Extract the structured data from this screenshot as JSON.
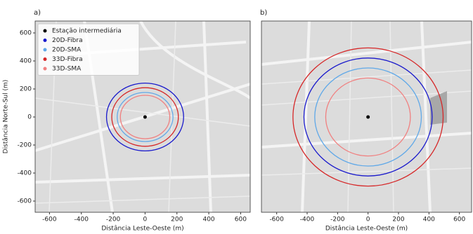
{
  "chart_data": [
    {
      "type": "circles",
      "title": "a)",
      "xlabel": "Distância Leste-Oeste (m)",
      "ylabel": "Distância Norte-Sul (m)",
      "xlim": [
        -690,
        660
      ],
      "ylim": [
        -680,
        685
      ],
      "xticks": [
        -600,
        -400,
        -200,
        0,
        200,
        400,
        600
      ],
      "yticks": [
        -600,
        -400,
        -200,
        0,
        200,
        400,
        600
      ],
      "center": {
        "name": "Estação intermediária",
        "color": "#000000",
        "x": 0,
        "y": 0
      },
      "series": [
        {
          "name": "20D-Fibra",
          "color": "#1a1acc",
          "radius": 242
        },
        {
          "name": "20D-SMA",
          "color": "#5fa8e8",
          "radius": 175
        },
        {
          "name": "33D-Fibra",
          "color": "#d62728",
          "radius": 209
        },
        {
          "name": "33D-SMA",
          "color": "#f08080",
          "radius": 155
        }
      ],
      "legend": "upper left"
    },
    {
      "type": "circles",
      "title": "b)",
      "xlabel": "Distância Leste-Oeste (m)",
      "xlim": [
        -700,
        680
      ],
      "ylim": [
        -680,
        685
      ],
      "xticks": [
        -600,
        -400,
        -200,
        0,
        200,
        400,
        600
      ],
      "center": {
        "color": "#000000",
        "x": 0,
        "y": 0
      },
      "series": [
        {
          "color": "#1a1acc",
          "radius": 421
        },
        {
          "color": "#5fa8e8",
          "radius": 350
        },
        {
          "color": "#d62728",
          "radius": 493
        },
        {
          "color": "#f08080",
          "radius": 278
        }
      ]
    }
  ]
}
